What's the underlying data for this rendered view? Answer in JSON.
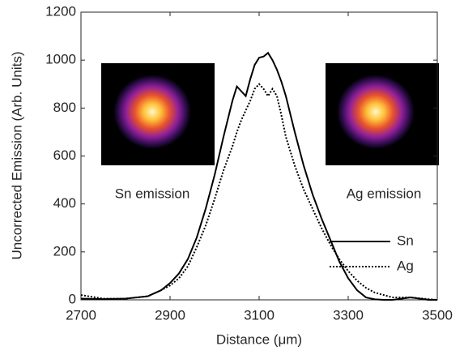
{
  "chart_data": {
    "type": "line",
    "xlabel": "Distance (μm)",
    "ylabel": "Uncorrected Emission (Arb. Units)",
    "x": [
      2700,
      2750,
      2800,
      2850,
      2880,
      2900,
      2920,
      2940,
      2960,
      2980,
      3000,
      3020,
      3040,
      3050,
      3060,
      3070,
      3080,
      3090,
      3100,
      3110,
      3120,
      3130,
      3140,
      3150,
      3160,
      3180,
      3200,
      3220,
      3240,
      3260,
      3280,
      3300,
      3320,
      3340,
      3360,
      3380,
      3400,
      3440,
      3480,
      3500
    ],
    "series": [
      {
        "name": "Sn",
        "color": "#000000",
        "dash": "solid",
        "values": [
          5,
          3,
          5,
          15,
          40,
          70,
          110,
          170,
          260,
          380,
          520,
          680,
          830,
          890,
          870,
          850,
          920,
          980,
          1010,
          1015,
          1030,
          1000,
          960,
          910,
          850,
          700,
          560,
          440,
          340,
          250,
          160,
          90,
          40,
          10,
          2,
          0,
          0,
          10,
          0,
          0
        ]
      },
      {
        "name": "Ag",
        "color": "#000000",
        "dash": "dotted",
        "values": [
          20,
          5,
          5,
          15,
          40,
          60,
          90,
          140,
          220,
          310,
          420,
          540,
          640,
          700,
          750,
          790,
          830,
          880,
          900,
          880,
          850,
          880,
          850,
          770,
          680,
          560,
          460,
          380,
          300,
          230,
          170,
          120,
          80,
          50,
          30,
          20,
          10,
          10,
          3,
          0
        ]
      }
    ],
    "xlim": [
      2700,
      3500
    ],
    "xticks": [
      2700,
      2900,
      3100,
      3300,
      3500
    ],
    "ylim": [
      0,
      1200
    ],
    "yticks": [
      0,
      200,
      400,
      600,
      800,
      1000,
      1200
    ],
    "annotations": [
      {
        "text": "Sn emission"
      },
      {
        "text": "Ag emission"
      }
    ]
  }
}
